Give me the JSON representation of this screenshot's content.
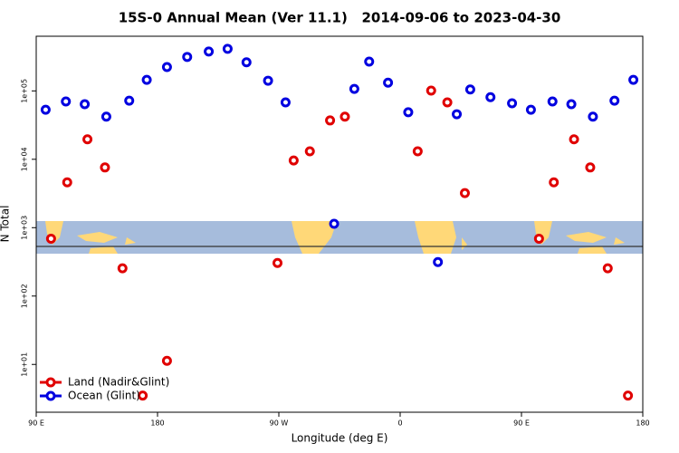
{
  "chart_data": {
    "type": "scatter",
    "title": "15S-0 Annual Mean (Ver 11.1)   2014-09-06 to 2023-04-30",
    "xlabel": "Longitude (deg E)",
    "ylabel": "N Total",
    "xlim": [
      90,
      540
    ],
    "xticks": [
      {
        "value": 90,
        "label": "90 E"
      },
      {
        "value": 180,
        "label": "180"
      },
      {
        "value": 270,
        "label": "90 W"
      },
      {
        "value": 360,
        "label": "0"
      },
      {
        "value": 450,
        "label": "90 E"
      },
      {
        "value": 540,
        "label": "180"
      }
    ],
    "ylim": [
      2,
      630000
    ],
    "yscale": "log",
    "yticks": [
      {
        "value": 10,
        "label": "1e+01"
      },
      {
        "value": 100,
        "label": "1e+02"
      },
      {
        "value": 1000,
        "label": "1e+03"
      },
      {
        "value": 10000,
        "label": "1e+04"
      },
      {
        "value": 100000,
        "label": "1e+05"
      }
    ],
    "legend": "lower left",
    "series": [
      {
        "name": "Land (Nadir&Glint)",
        "color": "#e00000",
        "x": [
          101,
          113,
          128,
          141,
          154,
          169,
          187,
          269,
          281,
          293,
          308,
          319,
          373,
          383,
          395,
          408,
          463,
          474,
          489,
          501,
          514,
          529
        ],
        "values": [
          690,
          4600,
          19600,
          7600,
          255,
          3.5,
          11.3,
          305,
          9600,
          13100,
          37000,
          42000,
          13100,
          101000,
          68000,
          3200,
          690,
          4600,
          19600,
          7600,
          255,
          3.5
        ]
      },
      {
        "name": "Ocean (Glint)",
        "color": "#0000e0",
        "x": [
          97,
          112,
          126,
          142,
          159,
          172,
          187,
          202,
          218,
          232,
          246,
          262,
          275,
          311,
          326,
          337,
          351,
          366,
          388,
          402,
          412,
          427,
          443,
          457,
          473,
          487,
          503,
          519,
          533
        ],
        "values": [
          53000,
          70000,
          64000,
          42000,
          72000,
          145000,
          223000,
          314000,
          376000,
          412000,
          262000,
          141000,
          68000,
          1140,
          107000,
          268000,
          132000,
          48700,
          314,
          45600,
          105000,
          81000,
          66000,
          53000,
          70000,
          64000,
          42000,
          72000,
          145000
        ]
      }
    ]
  }
}
